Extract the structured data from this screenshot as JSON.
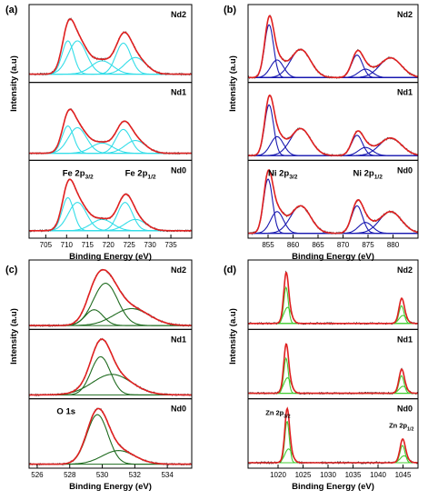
{
  "figure": {
    "background": "#ffffff"
  },
  "chart_data": [
    {
      "panel_label": "(a)",
      "type": "line",
      "xlabel": "Binding Energy (eV)",
      "ylabel": "Intensity (a.u)",
      "xlim": [
        701,
        740
      ],
      "x_ticks": [
        705,
        710,
        715,
        720,
        725,
        730,
        735
      ],
      "colors": {
        "envelope": "#e02020",
        "raw": "#555555",
        "components": "#33dde8"
      },
      "peak_labels": [
        {
          "text": "Fe 2p",
          "sub": "3/2",
          "x": 709
        },
        {
          "text": "Fe 2p",
          "sub": "1/2",
          "x": 724
        }
      ],
      "subplots": [
        {
          "label": "Nd2",
          "baseline": 0.05,
          "components": [
            {
              "center": 710.3,
              "width": 1.4,
              "height": 0.3
            },
            {
              "center": 712.6,
              "width": 2.2,
              "height": 0.3
            },
            {
              "center": 718.5,
              "width": 2.6,
              "height": 0.12
            },
            {
              "center": 723.6,
              "width": 1.8,
              "height": 0.28
            },
            {
              "center": 726.5,
              "width": 2.5,
              "height": 0.15
            }
          ]
        },
        {
          "label": "Nd1",
          "baseline": 0.05,
          "components": [
            {
              "center": 710.3,
              "width": 1.4,
              "height": 0.32
            },
            {
              "center": 712.6,
              "width": 2.2,
              "height": 0.3
            },
            {
              "center": 718.5,
              "width": 2.6,
              "height": 0.12
            },
            {
              "center": 723.6,
              "width": 1.8,
              "height": 0.28
            },
            {
              "center": 726.5,
              "width": 2.5,
              "height": 0.15
            }
          ]
        },
        {
          "label": "Nd0",
          "baseline": 0.05,
          "components": [
            {
              "center": 710.3,
              "width": 1.4,
              "height": 0.35
            },
            {
              "center": 712.6,
              "width": 2.2,
              "height": 0.3
            },
            {
              "center": 718.5,
              "width": 2.6,
              "height": 0.12
            },
            {
              "center": 724.0,
              "width": 1.8,
              "height": 0.3
            },
            {
              "center": 726.5,
              "width": 2.5,
              "height": 0.12
            }
          ]
        }
      ]
    },
    {
      "panel_label": "(b)",
      "type": "line",
      "xlabel": "Binding Energy (eV)",
      "ylabel": "Intensity (a.u)",
      "xlim": [
        851,
        885
      ],
      "x_ticks": [
        855,
        860,
        865,
        870,
        875,
        880
      ],
      "colors": {
        "envelope": "#e02020",
        "raw": "#555555",
        "components": "#1818b0"
      },
      "peak_labels": [
        {
          "text": "Ni 2p",
          "sub": "3/2",
          "x": 855
        },
        {
          "text": "Ni 2p",
          "sub": "1/2",
          "x": 872
        }
      ],
      "subplots": [
        {
          "label": "Nd2",
          "baseline": 0.03,
          "components": [
            {
              "center": 855.2,
              "width": 0.9,
              "height": 0.75
            },
            {
              "center": 856.8,
              "width": 1.3,
              "height": 0.25
            },
            {
              "center": 861.5,
              "width": 2.0,
              "height": 0.4
            },
            {
              "center": 872.8,
              "width": 1.1,
              "height": 0.32
            },
            {
              "center": 874.5,
              "width": 1.4,
              "height": 0.12
            },
            {
              "center": 879.5,
              "width": 2.2,
              "height": 0.28
            }
          ]
        },
        {
          "label": "Nd1",
          "baseline": 0.03,
          "components": [
            {
              "center": 855.2,
              "width": 0.9,
              "height": 0.75
            },
            {
              "center": 856.8,
              "width": 1.3,
              "height": 0.28
            },
            {
              "center": 861.5,
              "width": 2.0,
              "height": 0.4
            },
            {
              "center": 872.8,
              "width": 1.1,
              "height": 0.3
            },
            {
              "center": 874.5,
              "width": 1.4,
              "height": 0.12
            },
            {
              "center": 879.5,
              "width": 2.2,
              "height": 0.26
            }
          ]
        },
        {
          "label": "Nd0",
          "baseline": 0.03,
          "components": [
            {
              "center": 855.0,
              "width": 0.9,
              "height": 0.75
            },
            {
              "center": 856.8,
              "width": 1.3,
              "height": 0.3
            },
            {
              "center": 861.5,
              "width": 2.0,
              "height": 0.38
            },
            {
              "center": 872.8,
              "width": 1.1,
              "height": 0.38
            },
            {
              "center": 874.5,
              "width": 1.4,
              "height": 0.15
            },
            {
              "center": 879.5,
              "width": 2.2,
              "height": 0.3
            }
          ]
        }
      ]
    },
    {
      "panel_label": "(c)",
      "type": "line",
      "xlabel": "Binding Energy (eV)",
      "ylabel": "Intensity (a.u)",
      "xlim": [
        525.5,
        535.5
      ],
      "x_ticks": [
        526,
        528,
        530,
        532,
        534
      ],
      "colors": {
        "envelope": "#e02020",
        "raw": "#555555",
        "components": "#1f6b1f"
      },
      "peak_labels": [
        {
          "text": "O 1s",
          "sub": "",
          "x": 527.2
        }
      ],
      "subplots": [
        {
          "label": "Nd2",
          "baseline": 0.02,
          "components": [
            {
              "center": 529.5,
              "width": 0.55,
              "height": 0.28
            },
            {
              "center": 530.2,
              "width": 0.75,
              "height": 0.75
            },
            {
              "center": 531.8,
              "width": 1.1,
              "height": 0.3
            }
          ]
        },
        {
          "label": "Nd1",
          "baseline": 0.02,
          "components": [
            {
              "center": 529.9,
              "width": 0.6,
              "height": 0.65
            },
            {
              "center": 530.6,
              "width": 1.2,
              "height": 0.35
            }
          ]
        },
        {
          "label": "Nd0",
          "baseline": 0.02,
          "components": [
            {
              "center": 529.7,
              "width": 0.65,
              "height": 0.8
            },
            {
              "center": 531.0,
              "width": 1.0,
              "height": 0.22
            }
          ]
        }
      ]
    },
    {
      "panel_label": "(d)",
      "type": "line",
      "xlabel": "Binding Energy (eV)",
      "ylabel": "Intensity (a.u)",
      "xlim": [
        1014,
        1048
      ],
      "x_ticks": [
        1020,
        1025,
        1030,
        1035,
        1040,
        1045
      ],
      "colors": {
        "envelope": "#e02020",
        "raw": "#111111",
        "components": "#44cc33"
      },
      "peak_labels": [
        {
          "text": "Zn 2p",
          "sub": "3/2",
          "x": 1017.5
        },
        {
          "text": "Zn 2p",
          "sub": "1/2",
          "x": 1042.2
        }
      ],
      "subplots": [
        {
          "label": "Nd2",
          "baseline": 0.04,
          "components": [
            {
              "center": 1021.6,
              "width": 0.45,
              "height": 0.45
            },
            {
              "center": 1021.9,
              "width": 0.75,
              "height": 0.2
            },
            {
              "center": 1044.7,
              "width": 0.5,
              "height": 0.22
            },
            {
              "center": 1045.0,
              "width": 0.75,
              "height": 0.1
            }
          ]
        },
        {
          "label": "Nd1",
          "baseline": 0.04,
          "components": [
            {
              "center": 1021.6,
              "width": 0.45,
              "height": 0.5
            },
            {
              "center": 1021.9,
              "width": 0.75,
              "height": 0.22
            },
            {
              "center": 1044.7,
              "width": 0.5,
              "height": 0.25
            },
            {
              "center": 1045.0,
              "width": 0.75,
              "height": 0.1
            }
          ]
        },
        {
          "label": "Nd0",
          "baseline": 0.04,
          "components": [
            {
              "center": 1021.8,
              "width": 0.45,
              "height": 0.6
            },
            {
              "center": 1022.1,
              "width": 0.75,
              "height": 0.2
            },
            {
              "center": 1044.9,
              "width": 0.5,
              "height": 0.25
            },
            {
              "center": 1045.2,
              "width": 0.75,
              "height": 0.1
            }
          ]
        }
      ]
    }
  ]
}
